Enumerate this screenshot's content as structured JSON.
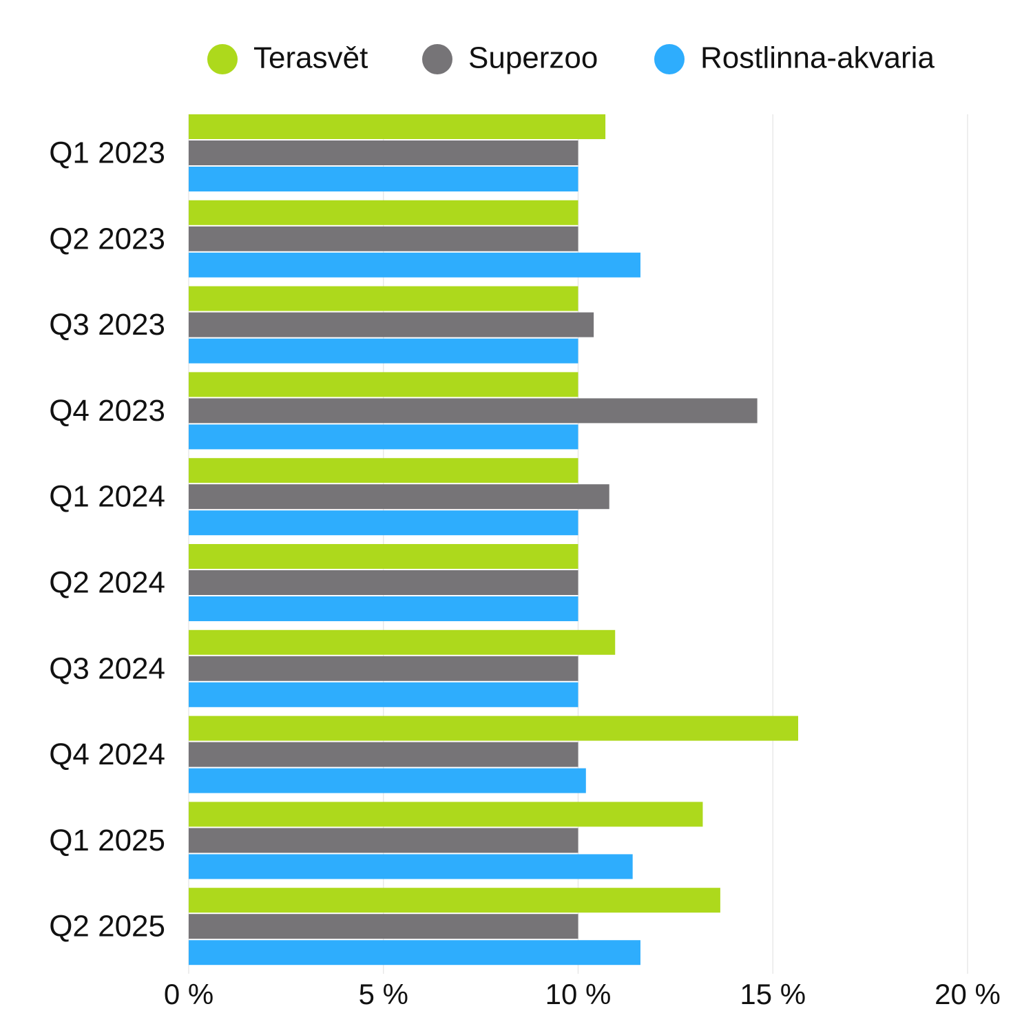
{
  "chart_data": {
    "type": "bar",
    "orientation": "horizontal",
    "title": "",
    "xlabel": "",
    "ylabel": "",
    "xlim": [
      0,
      20
    ],
    "x_ticks": [
      0,
      5,
      10,
      15,
      20
    ],
    "tick_suffix": " %",
    "grid": true,
    "legend_position": "top",
    "categories": [
      "Q1 2023",
      "Q2 2023",
      "Q3 2023",
      "Q4 2023",
      "Q1 2024",
      "Q2 2024",
      "Q3 2024",
      "Q4 2024",
      "Q1 2025",
      "Q2 2025"
    ],
    "series": [
      {
        "name": "Terasvět",
        "color": "#add91c",
        "values": [
          10.7,
          10.0,
          10.0,
          10.0,
          10.0,
          10.0,
          10.95,
          15.65,
          13.2,
          13.65
        ]
      },
      {
        "name": "Superzoo",
        "color": "#767477",
        "values": [
          10.0,
          10.0,
          10.4,
          14.6,
          10.8,
          10.0,
          10.0,
          10.0,
          10.0,
          10.0
        ]
      },
      {
        "name": "Rostlinna-akvaria",
        "color": "#2eadfd",
        "values": [
          10.0,
          11.6,
          10.0,
          10.0,
          10.0,
          10.0,
          10.0,
          10.2,
          11.4,
          11.6
        ]
      }
    ]
  }
}
